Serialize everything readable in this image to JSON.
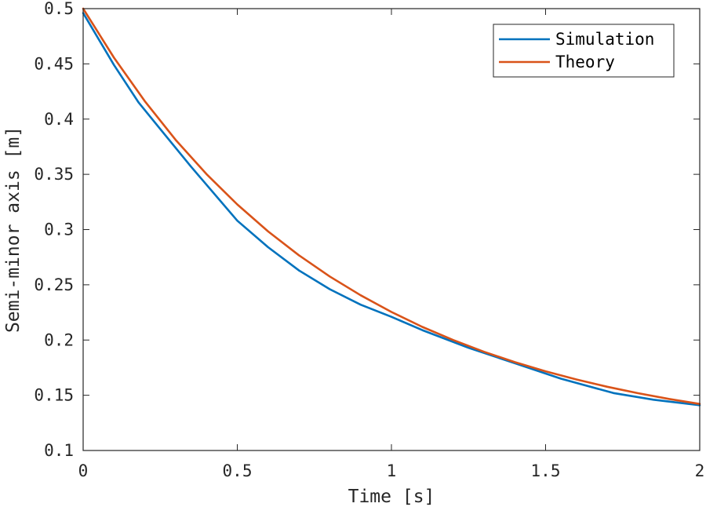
{
  "chart_data": {
    "type": "line",
    "title": "",
    "xlabel": "Time [s]",
    "ylabel": "Semi-minor axis [m]",
    "xlim": [
      0,
      2
    ],
    "ylim": [
      0.1,
      0.5
    ],
    "xticks": [
      "0",
      "0.5",
      "1",
      "1.5",
      "2"
    ],
    "yticks": [
      "0.1",
      "0.15",
      "0.2",
      "0.25",
      "0.3",
      "0.35",
      "0.4",
      "0.45",
      "0.5"
    ],
    "xtick_values": [
      0,
      0.5,
      1,
      1.5,
      2
    ],
    "ytick_values": [
      0.1,
      0.15,
      0.2,
      0.25,
      0.3,
      0.35,
      0.4,
      0.45,
      0.5
    ],
    "legend_position": "top-right",
    "grid": false,
    "series": [
      {
        "name": "Simulation",
        "color": "#0072BD",
        "x": [
          0,
          0.1,
          0.18,
          0.25,
          0.35,
          0.5,
          0.6,
          0.7,
          0.8,
          0.9,
          1.0,
          1.1,
          1.25,
          1.4,
          1.55,
          1.72,
          1.85,
          2.0
        ],
        "y": [
          0.496,
          0.449,
          0.415,
          0.391,
          0.357,
          0.308,
          0.284,
          0.263,
          0.246,
          0.232,
          0.221,
          0.209,
          0.193,
          0.179,
          0.165,
          0.152,
          0.146,
          0.141
        ]
      },
      {
        "name": "Theory",
        "color": "#D95319",
        "x": [
          0,
          0.1,
          0.2,
          0.3,
          0.4,
          0.5,
          0.6,
          0.7,
          0.8,
          0.9,
          1.0,
          1.1,
          1.2,
          1.3,
          1.4,
          1.5,
          1.6,
          1.7,
          1.8,
          1.9,
          2.0
        ],
        "y": [
          0.5,
          0.4556,
          0.4162,
          0.3812,
          0.3502,
          0.3227,
          0.2983,
          0.2767,
          0.2575,
          0.2405,
          0.2254,
          0.2119,
          0.2,
          0.1894,
          0.18,
          0.1717,
          0.1643,
          0.1577,
          0.1519,
          0.1467,
          0.1421
        ]
      }
    ]
  }
}
